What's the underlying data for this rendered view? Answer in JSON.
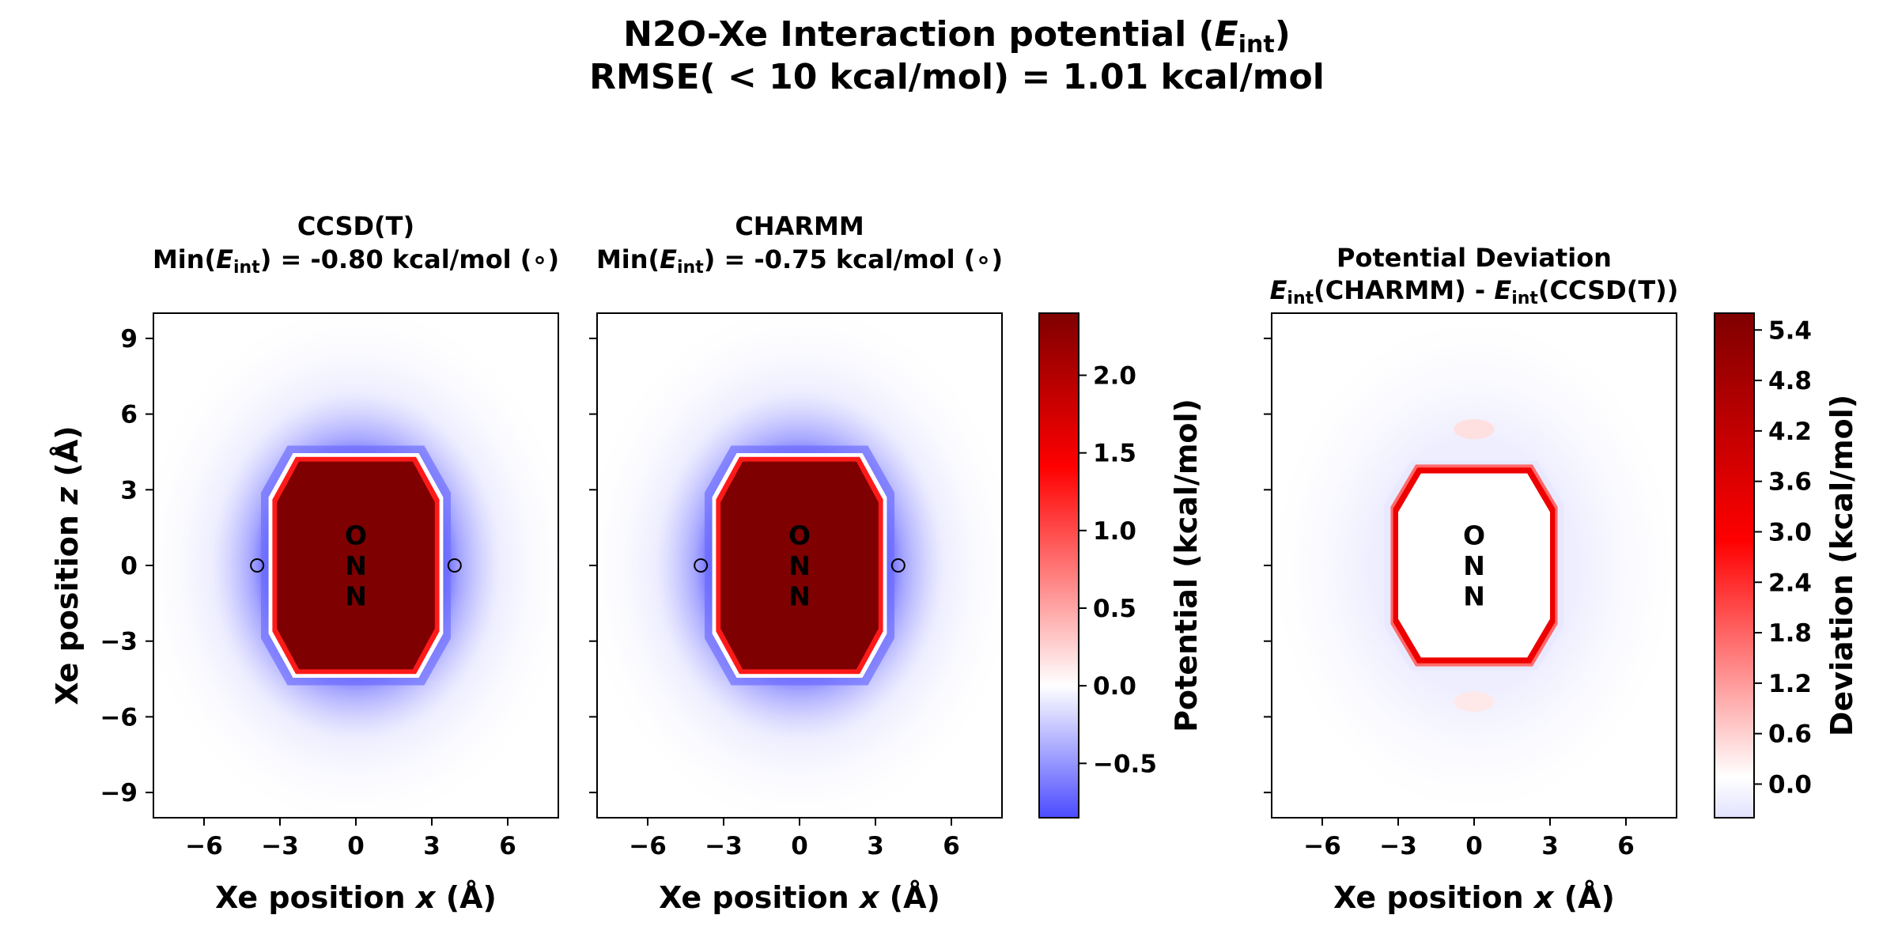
{
  "figure": {
    "title_line1_prefix": "N2O-Xe Interaction potential (",
    "title_sym": "E",
    "title_sub": "int",
    "title_line1_suffix": ")",
    "title_line2": "RMSE( < 10 kcal/mol) = 1.01 kcal/mol"
  },
  "chart_data": [
    {
      "type": "heatmap",
      "title": "CCSD(T)",
      "subtitle": {
        "prefix": "Min(",
        "sym": "E",
        "sub": "int",
        "suffix": ") = -0.80 kcal/mol (∘)"
      },
      "xlabel": {
        "prefix": "Xe position ",
        "sym": "x",
        "suffix": " (Å)"
      },
      "ylabel": {
        "prefix": "Xe position ",
        "sym": "z",
        "suffix": " (Å)"
      },
      "xlim": [
        -8,
        8
      ],
      "ylim": [
        -10,
        10
      ],
      "xticks": [
        -6,
        -3,
        0,
        3,
        6
      ],
      "yticks": [
        -9,
        -6,
        -3,
        0,
        3,
        6,
        9
      ],
      "xticklabels": [
        "−6",
        "−3",
        "0",
        "3",
        "6"
      ],
      "yticklabels": [
        "−9",
        "−6",
        "−3",
        "0",
        "3",
        "6",
        "9"
      ],
      "core_value": 2.4,
      "minimum_kcal_mol": -0.8,
      "minima_markers": [
        {
          "x": -3.9,
          "z": 0
        },
        {
          "x": 3.9,
          "z": 0
        }
      ],
      "atoms": [
        {
          "label": "O",
          "x": 0,
          "z": 1.2
        },
        {
          "label": "N",
          "x": 0,
          "z": 0
        },
        {
          "label": "N",
          "x": 0,
          "z": -1.2
        }
      ],
      "colormap": "bwr"
    },
    {
      "type": "heatmap",
      "title": "CHARMM",
      "subtitle": {
        "prefix": "Min(",
        "sym": "E",
        "sub": "int",
        "suffix": ") = -0.75 kcal/mol (∘)"
      },
      "xlabel": {
        "prefix": "Xe position ",
        "sym": "x",
        "suffix": " (Å)"
      },
      "xlim": [
        -8,
        8
      ],
      "ylim": [
        -10,
        10
      ],
      "xticks": [
        -6,
        -3,
        0,
        3,
        6
      ],
      "yticks": [
        -9,
        -6,
        -3,
        0,
        3,
        6,
        9
      ],
      "xticklabels": [
        "−6",
        "−3",
        "0",
        "3",
        "6"
      ],
      "core_value": 2.4,
      "minimum_kcal_mol": -0.75,
      "minima_markers": [
        {
          "x": -3.9,
          "z": 0
        },
        {
          "x": 3.9,
          "z": 0
        }
      ],
      "atoms": [
        {
          "label": "O",
          "x": 0,
          "z": 1.2
        },
        {
          "label": "N",
          "x": 0,
          "z": 0
        },
        {
          "label": "N",
          "x": 0,
          "z": -1.2
        }
      ],
      "colormap": "bwr"
    },
    {
      "type": "heatmap",
      "title": "Potential Deviation",
      "subtitle": {
        "sym1": "E",
        "sub1": "int",
        "mid": "(CHARMM) - ",
        "sym2": "E",
        "sub2": "int",
        "suffix": "(CCSD(T))"
      },
      "xlabel": {
        "prefix": "Xe position ",
        "sym": "x",
        "suffix": " (Å)"
      },
      "xlim": [
        -8,
        8
      ],
      "ylim": [
        -10,
        10
      ],
      "xticks": [
        -6,
        -3,
        0,
        3,
        6
      ],
      "yticks": [
        -9,
        -6,
        -3,
        0,
        3,
        6,
        9
      ],
      "xticklabels": [
        "−6",
        "−3",
        "0",
        "3",
        "6"
      ],
      "atoms": [
        {
          "label": "O",
          "x": 0,
          "z": 1.2
        },
        {
          "label": "N",
          "x": 0,
          "z": 0
        },
        {
          "label": "N",
          "x": 0,
          "z": -1.2
        }
      ],
      "colormap": "bwr"
    }
  ],
  "colorbars": [
    {
      "label": "Potential (kcal/mol)",
      "range": [
        -0.85,
        2.4
      ],
      "ticks": [
        -0.5,
        0.0,
        0.5,
        1.0,
        1.5,
        2.0
      ],
      "ticklabels": [
        "−0.5",
        "0.0",
        "0.5",
        "1.0",
        "1.5",
        "2.0"
      ],
      "colors": [
        "#4b4bff",
        "#ffffff",
        "#ff0000",
        "#7f0000"
      ]
    },
    {
      "label": "Deviation (kcal/mol)",
      "range": [
        -0.4,
        5.6
      ],
      "ticks": [
        0.0,
        0.6,
        1.2,
        1.8,
        2.4,
        3.0,
        3.6,
        4.2,
        4.8,
        5.4
      ],
      "ticklabels": [
        "0.0",
        "0.6",
        "1.2",
        "1.8",
        "2.4",
        "3.0",
        "3.6",
        "4.2",
        "4.8",
        "5.4"
      ],
      "colors": [
        "#e2e2ff",
        "#ffffff",
        "#ff0000",
        "#7f0000"
      ]
    }
  ]
}
